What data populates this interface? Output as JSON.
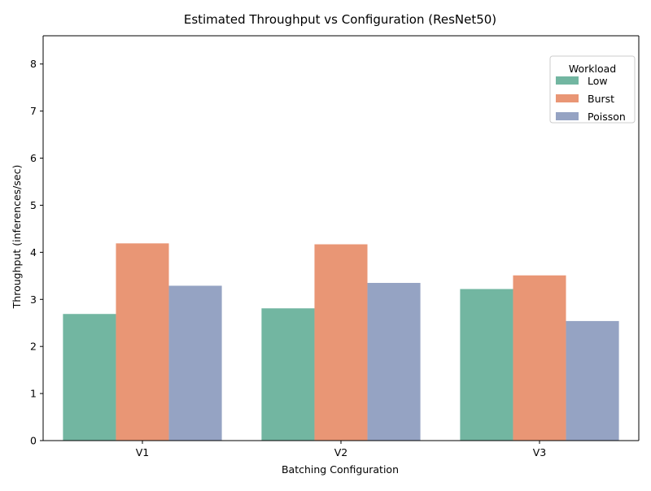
{
  "chart_data": {
    "type": "bar",
    "title": "Estimated Throughput vs Configuration (ResNet50)",
    "xlabel": "Batching Configuration",
    "ylabel": "Throughput (inferences/sec)",
    "categories": [
      "V1",
      "V2",
      "V3"
    ],
    "ylim": [
      0,
      8.6
    ],
    "yticks": [
      0,
      1,
      2,
      3,
      4,
      5,
      6,
      7,
      8
    ],
    "grid": false,
    "legend": {
      "title": "Workload",
      "placement": "top-right"
    },
    "series": [
      {
        "name": "Low",
        "color": "#72b6a1",
        "values": [
          2.69,
          2.81,
          3.22
        ]
      },
      {
        "name": "Burst",
        "color": "#e99675",
        "values": [
          4.19,
          4.17,
          3.51
        ]
      },
      {
        "name": "Poisson",
        "color": "#95a3c3",
        "values": [
          3.29,
          3.35,
          2.54
        ]
      }
    ]
  }
}
